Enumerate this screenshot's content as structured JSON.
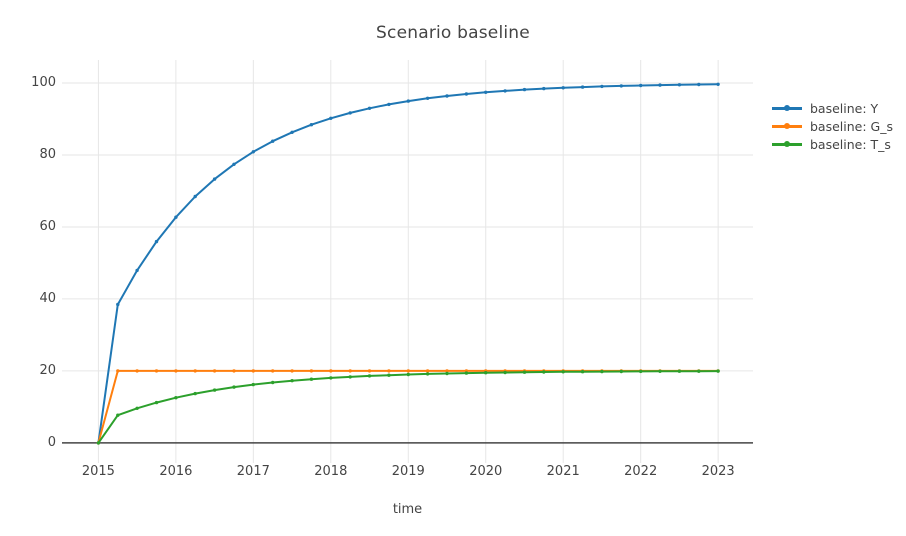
{
  "title": "Scenario baseline",
  "colors": {
    "text": "#444444",
    "grid": "#e6e6e6",
    "zeroline": "#444444",
    "background": "#ffffff"
  },
  "chart_data": {
    "type": "line",
    "mode": "lines+markers",
    "title": "Scenario baseline",
    "xlabel": "time",
    "ylabel": "",
    "grid": true,
    "legend_position": "right",
    "xlim": [
      2014.53,
      2023.45
    ],
    "ylim": [
      -5.6,
      106.4
    ],
    "x_ticks": [
      2015,
      2016,
      2017,
      2018,
      2019,
      2020,
      2021,
      2022,
      2023
    ],
    "y_ticks": [
      0,
      20,
      40,
      60,
      80,
      100
    ],
    "x": [
      2015,
      2015.25,
      2015.5,
      2015.75,
      2016,
      2016.25,
      2016.5,
      2016.75,
      2017,
      2017.25,
      2017.5,
      2017.75,
      2018,
      2018.25,
      2018.5,
      2018.75,
      2019,
      2019.25,
      2019.5,
      2019.75,
      2020,
      2020.25,
      2020.5,
      2020.75,
      2021,
      2021.25,
      2021.5,
      2021.75,
      2022,
      2022.25,
      2022.5,
      2022.75,
      2023
    ],
    "series": [
      {
        "name": "baseline: Y",
        "color": "#1f77b4",
        "values": [
          0,
          38.46,
          47.93,
          55.94,
          62.72,
          68.46,
          73.31,
          77.41,
          80.89,
          83.83,
          86.32,
          88.42,
          90.2,
          91.71,
          92.99,
          94.06,
          94.98,
          95.75,
          96.4,
          96.96,
          97.43,
          97.82,
          98.16,
          98.44,
          98.68,
          98.88,
          99.05,
          99.2,
          99.32,
          99.43,
          99.51,
          99.59,
          99.65
        ]
      },
      {
        "name": "baseline: G_s",
        "color": "#ff7f0e",
        "values": [
          0,
          20,
          20,
          20,
          20,
          20,
          20,
          20,
          20,
          20,
          20,
          20,
          20,
          20,
          20,
          20,
          20,
          20,
          20,
          20,
          20,
          20,
          20,
          20,
          20,
          20,
          20,
          20,
          20,
          20,
          20,
          20,
          20
        ]
      },
      {
        "name": "baseline: T_s",
        "color": "#2ca02c",
        "values": [
          0,
          7.69,
          9.59,
          11.19,
          12.54,
          13.69,
          14.66,
          15.48,
          16.18,
          16.77,
          17.26,
          17.68,
          18.04,
          18.34,
          18.6,
          18.81,
          19.0,
          19.15,
          19.28,
          19.39,
          19.49,
          19.56,
          19.63,
          19.69,
          19.74,
          19.78,
          19.81,
          19.84,
          19.87,
          19.89,
          19.9,
          19.92,
          19.93
        ]
      }
    ]
  }
}
